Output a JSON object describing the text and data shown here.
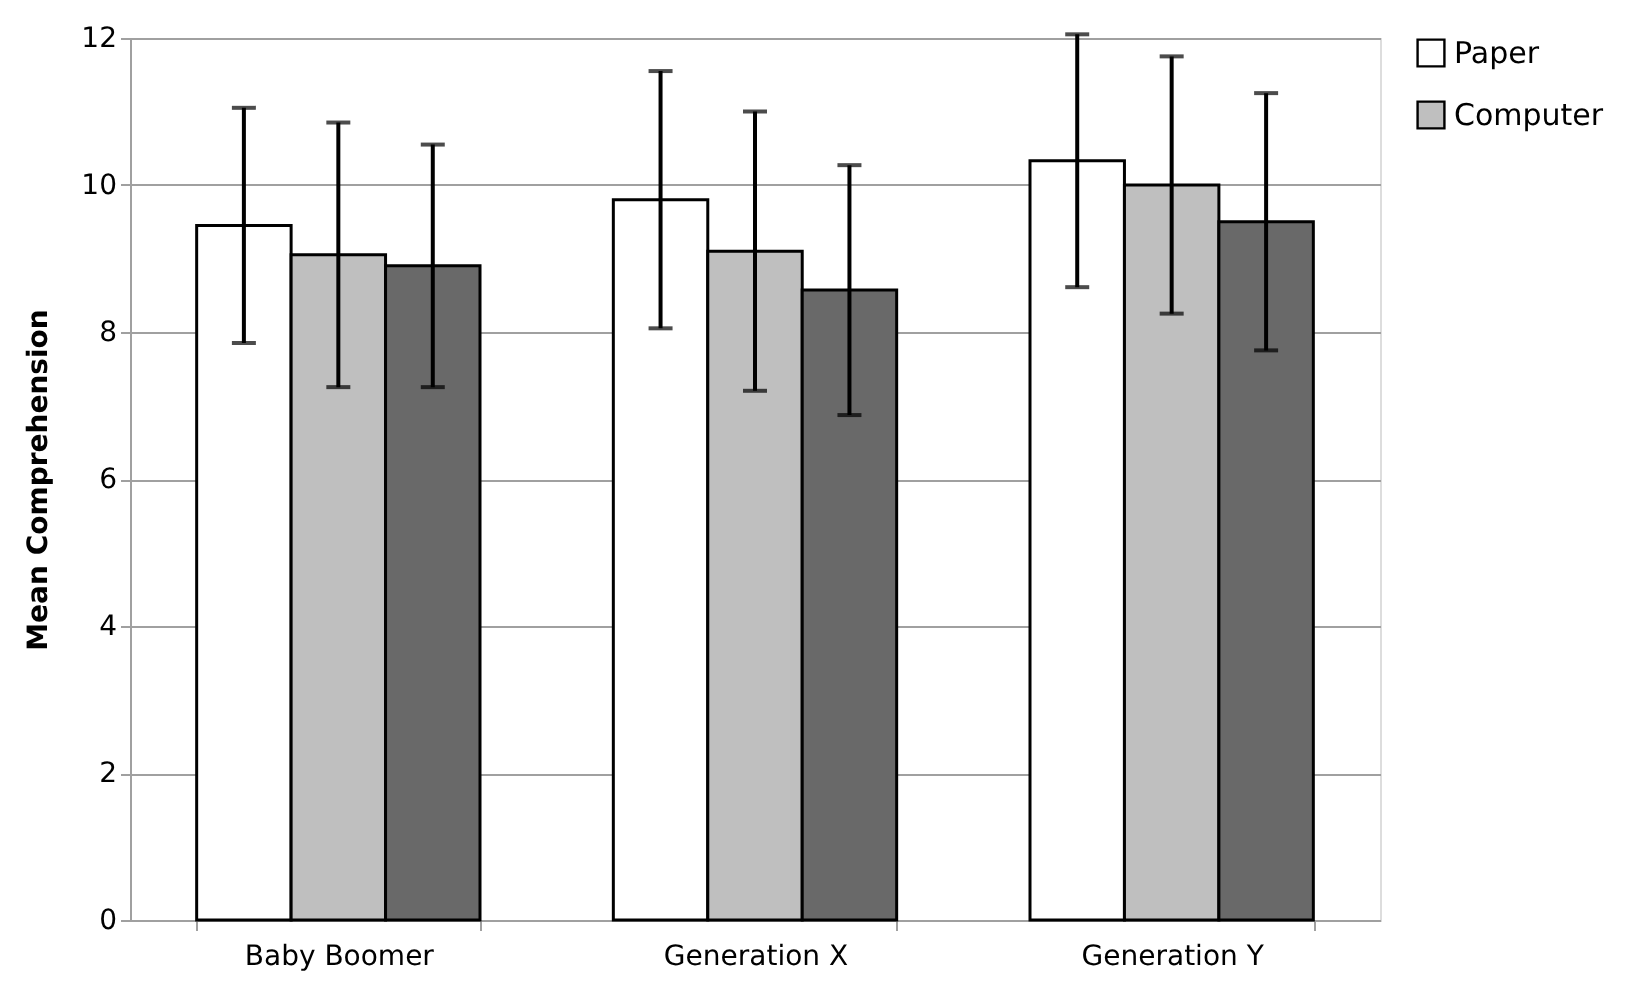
{
  "chart_data": {
    "type": "bar",
    "ylabel": "Mean Comprehension",
    "categories": [
      "Baby Boomer",
      "Generation X",
      "Generation Y"
    ],
    "series": [
      {
        "name": "Paper",
        "color": "#ffffff",
        "values": [
          9.45,
          9.8,
          10.33
        ],
        "errors": [
          1.6,
          1.75,
          1.72
        ]
      },
      {
        "name": "Computer",
        "color": "#bfbfbf",
        "values": [
          9.05,
          9.1,
          10.0
        ],
        "errors": [
          1.8,
          1.9,
          1.75
        ]
      },
      {
        "color": "#696969",
        "values": [
          8.9,
          8.57,
          9.5
        ],
        "errors": [
          1.65,
          1.7,
          1.75
        ]
      }
    ],
    "ylim": [
      0,
      12
    ],
    "yticks": [
      0,
      2,
      4,
      6,
      8,
      10,
      12
    ],
    "grid": "y",
    "legend": "right"
  }
}
